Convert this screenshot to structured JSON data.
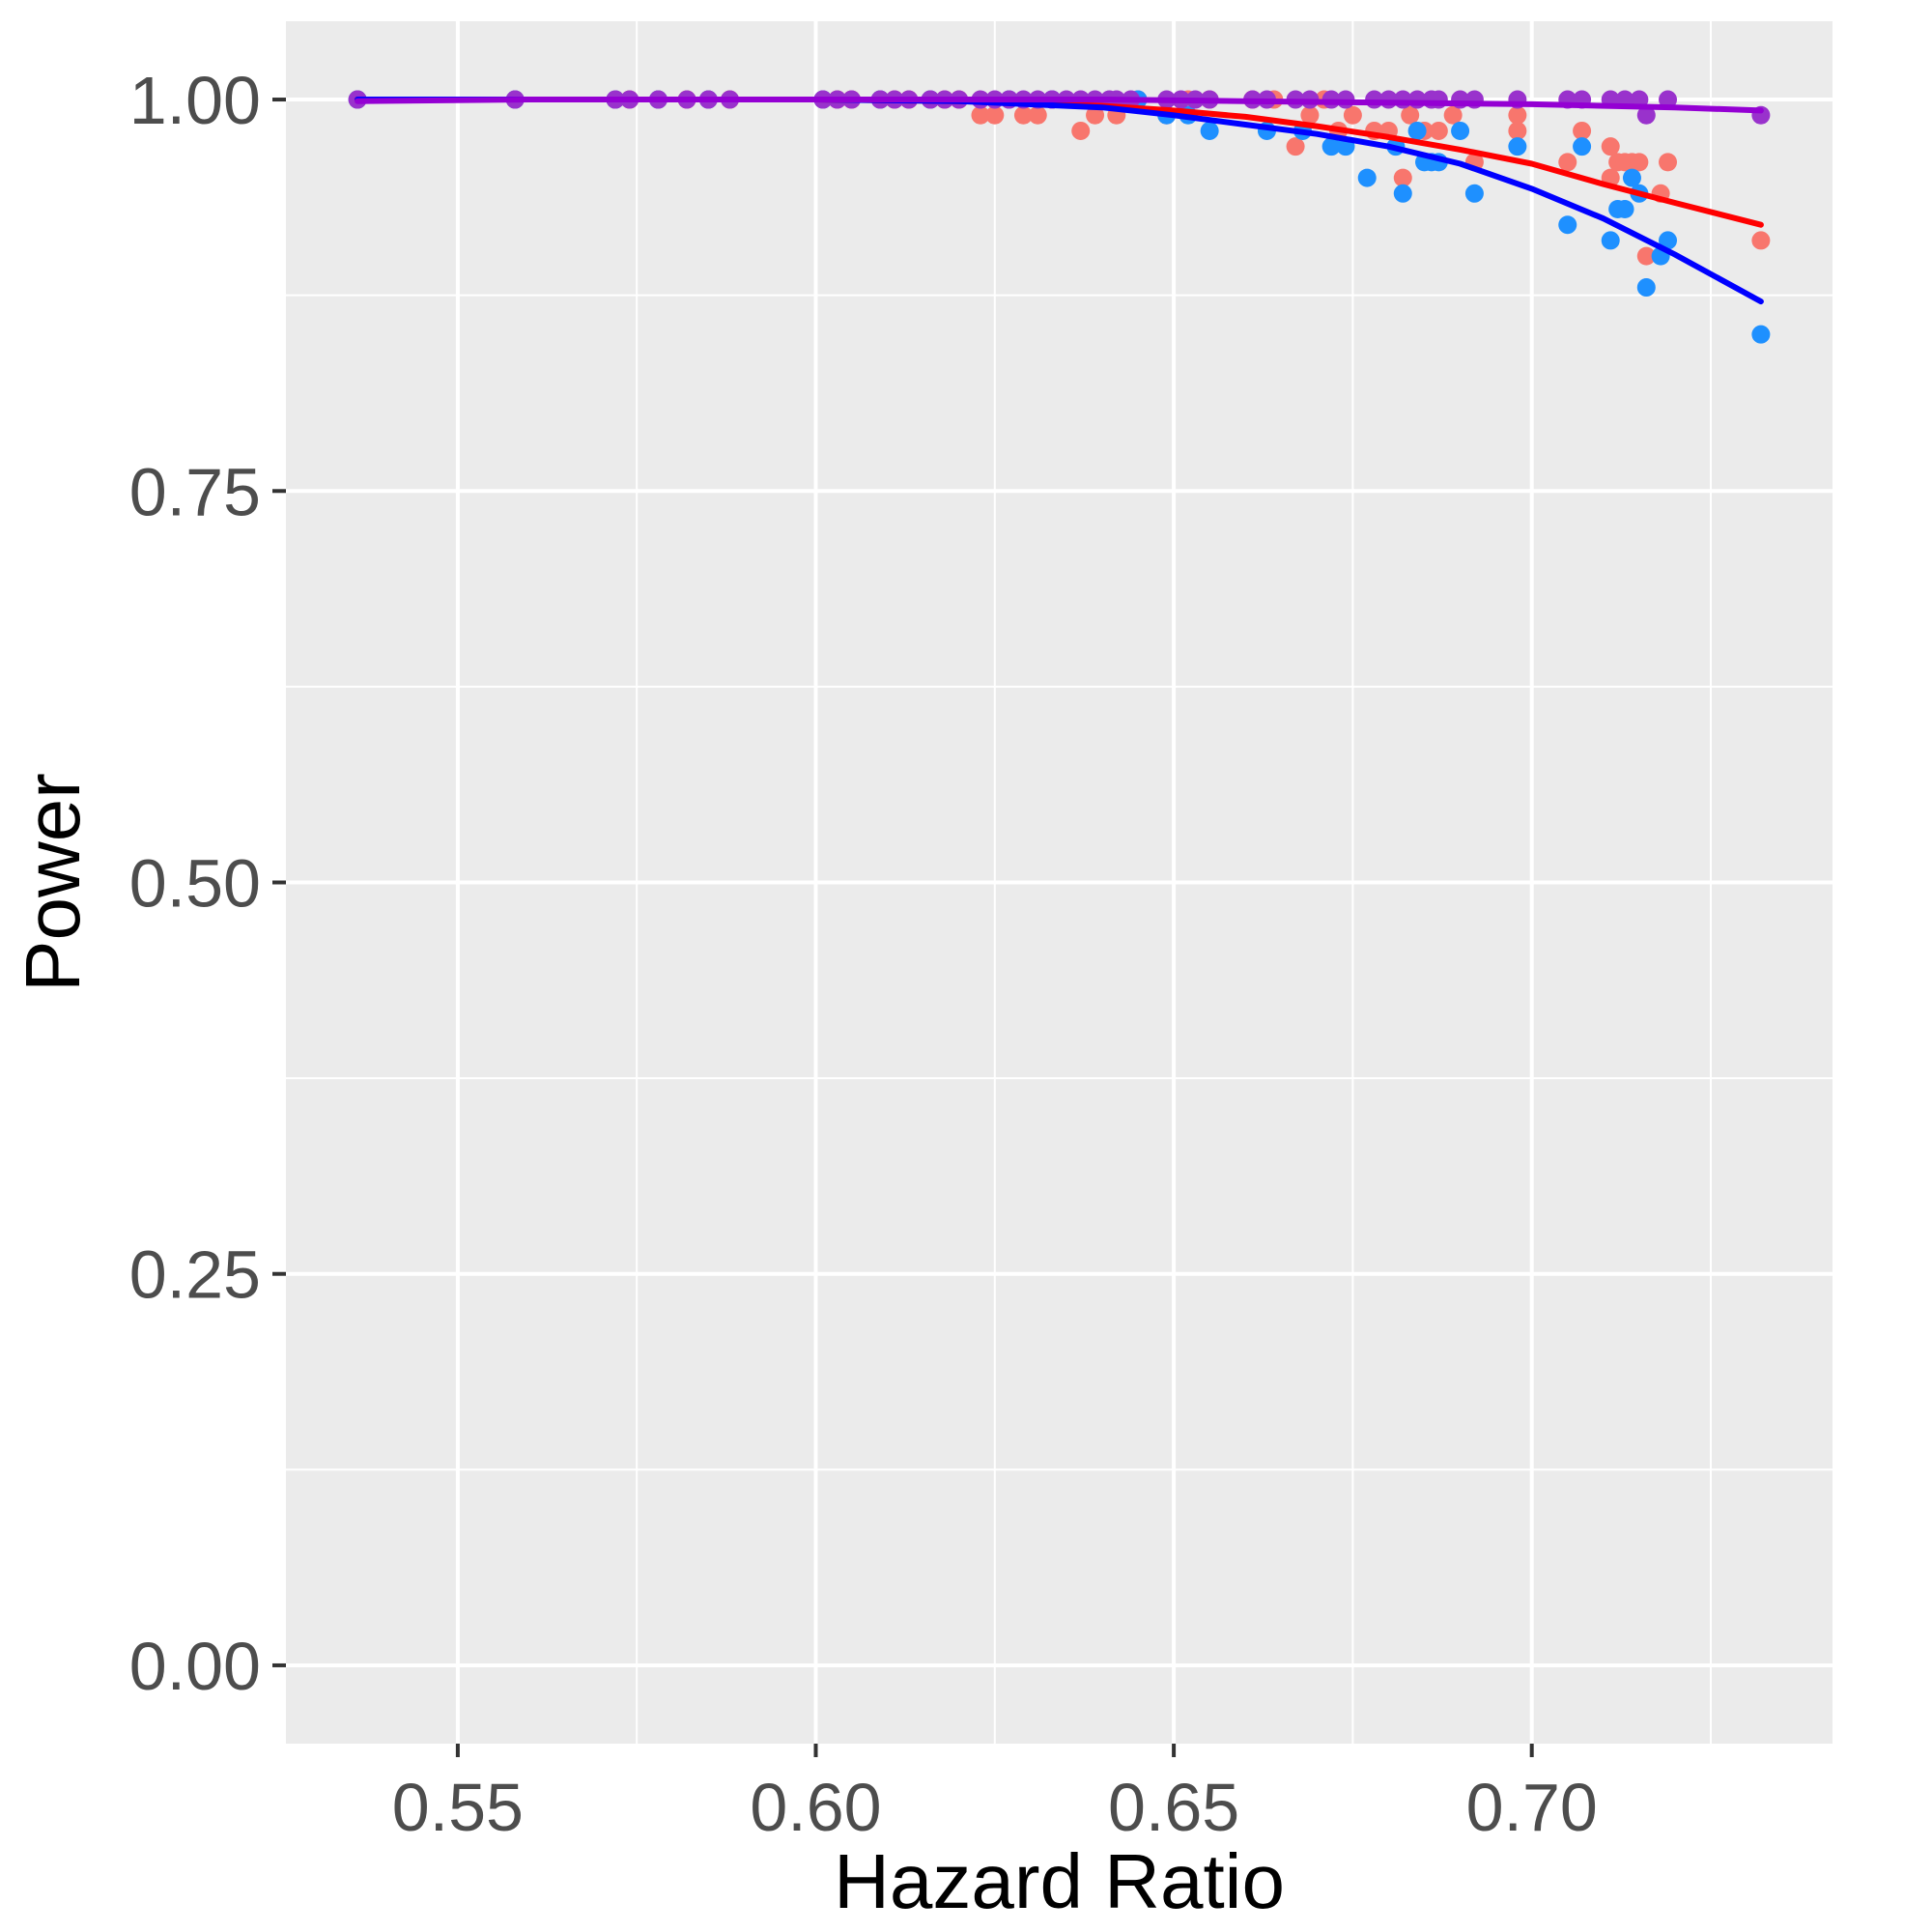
{
  "chart_data": {
    "type": "scatter",
    "title": "",
    "xlabel": "Hazard Ratio",
    "ylabel": "Power",
    "xlim": [
      0.526,
      0.742
    ],
    "ylim": [
      -0.05,
      1.05
    ],
    "x_ticks": [
      0.55,
      0.6,
      0.65,
      0.7
    ],
    "x_tick_labels": [
      "0.55",
      "0.60",
      "0.65",
      "0.70"
    ],
    "y_ticks": [
      0,
      0.25,
      0.5,
      0.75,
      1
    ],
    "y_tick_labels": [
      "0.00",
      "0.25",
      "0.50",
      "0.75",
      "1.00"
    ],
    "grid": true,
    "legend": "none",
    "colors": {
      "panel": "#ebebeb",
      "grid": "#ffffff",
      "axis_tick": "#333333"
    },
    "series": [
      {
        "color": "#f8766d",
        "line_color": "#ff0000",
        "points": [
          [
            0.536,
            1.0
          ],
          [
            0.558,
            1.0
          ],
          [
            0.572,
            1.0
          ],
          [
            0.574,
            1.0
          ],
          [
            0.578,
            1.0
          ],
          [
            0.582,
            1.0
          ],
          [
            0.585,
            1.0
          ],
          [
            0.588,
            1.0
          ],
          [
            0.601,
            1.0
          ],
          [
            0.603,
            1.0
          ],
          [
            0.605,
            1.0
          ],
          [
            0.609,
            1.0
          ],
          [
            0.611,
            1.0
          ],
          [
            0.613,
            1.0
          ],
          [
            0.616,
            1.0
          ],
          [
            0.618,
            1.0
          ],
          [
            0.62,
            1.0
          ],
          [
            0.623,
            0.99
          ],
          [
            0.625,
            0.99
          ],
          [
            0.627,
            1.0
          ],
          [
            0.629,
            0.99
          ],
          [
            0.631,
            0.99
          ],
          [
            0.633,
            1.0
          ],
          [
            0.637,
            0.98
          ],
          [
            0.639,
            0.99
          ],
          [
            0.642,
            0.99
          ],
          [
            0.645,
            1.0
          ],
          [
            0.649,
            0.99
          ],
          [
            0.652,
            1.0
          ],
          [
            0.655,
            1.0
          ],
          [
            0.661,
            1.0
          ],
          [
            0.664,
            1.0
          ],
          [
            0.667,
            0.97
          ],
          [
            0.669,
            0.99
          ],
          [
            0.671,
            1.0
          ],
          [
            0.673,
            0.98
          ],
          [
            0.675,
            0.99
          ],
          [
            0.678,
            0.98
          ],
          [
            0.68,
            0.98
          ],
          [
            0.682,
            0.95
          ],
          [
            0.683,
            0.99
          ],
          [
            0.685,
            0.98
          ],
          [
            0.687,
            0.98
          ],
          [
            0.689,
            0.99
          ],
          [
            0.692,
            0.96
          ],
          [
            0.698,
            0.98
          ],
          [
            0.698,
            0.99
          ],
          [
            0.705,
            0.96
          ],
          [
            0.707,
            0.98
          ],
          [
            0.711,
            0.97
          ],
          [
            0.711,
            0.95
          ],
          [
            0.712,
            0.96
          ],
          [
            0.713,
            0.96
          ],
          [
            0.714,
            0.96
          ],
          [
            0.715,
            0.96
          ],
          [
            0.716,
            0.9
          ],
          [
            0.718,
            0.94
          ],
          [
            0.719,
            0.96
          ],
          [
            0.732,
            0.91
          ]
        ],
        "fit": [
          [
            0.536,
            1.0
          ],
          [
            0.56,
            1.0
          ],
          [
            0.58,
            1.0
          ],
          [
            0.6,
            1.0
          ],
          [
            0.62,
            0.999
          ],
          [
            0.64,
            0.996
          ],
          [
            0.65,
            0.993
          ],
          [
            0.66,
            0.989
          ],
          [
            0.67,
            0.983
          ],
          [
            0.68,
            0.976
          ],
          [
            0.69,
            0.968
          ],
          [
            0.7,
            0.959
          ],
          [
            0.71,
            0.946
          ],
          [
            0.72,
            0.934
          ],
          [
            0.732,
            0.92
          ]
        ]
      },
      {
        "color": "#1e90ff",
        "line_color": "#0000ff",
        "points": [
          [
            0.536,
            1.0
          ],
          [
            0.558,
            1.0
          ],
          [
            0.572,
            1.0
          ],
          [
            0.578,
            1.0
          ],
          [
            0.585,
            1.0
          ],
          [
            0.601,
            1.0
          ],
          [
            0.609,
            1.0
          ],
          [
            0.616,
            1.0
          ],
          [
            0.627,
            1.0
          ],
          [
            0.633,
            1.0
          ],
          [
            0.645,
            1.0
          ],
          [
            0.649,
            0.99
          ],
          [
            0.652,
            0.99
          ],
          [
            0.655,
            0.98
          ],
          [
            0.663,
            0.98
          ],
          [
            0.668,
            0.98
          ],
          [
            0.672,
            0.97
          ],
          [
            0.674,
            0.97
          ],
          [
            0.677,
            0.95
          ],
          [
            0.681,
            0.97
          ],
          [
            0.682,
            0.94
          ],
          [
            0.684,
            0.98
          ],
          [
            0.685,
            0.96
          ],
          [
            0.686,
            0.96
          ],
          [
            0.687,
            0.96
          ],
          [
            0.69,
            0.98
          ],
          [
            0.692,
            0.94
          ],
          [
            0.698,
            0.97
          ],
          [
            0.705,
            0.92
          ],
          [
            0.707,
            0.97
          ],
          [
            0.711,
            0.91
          ],
          [
            0.712,
            0.93
          ],
          [
            0.713,
            0.93
          ],
          [
            0.714,
            0.95
          ],
          [
            0.715,
            0.94
          ],
          [
            0.716,
            0.88
          ],
          [
            0.718,
            0.9
          ],
          [
            0.719,
            0.91
          ],
          [
            0.732,
            0.85
          ]
        ],
        "fit": [
          [
            0.536,
            1.0
          ],
          [
            0.56,
            1.0
          ],
          [
            0.58,
            1.0
          ],
          [
            0.6,
            1.0
          ],
          [
            0.62,
            0.999
          ],
          [
            0.64,
            0.995
          ],
          [
            0.65,
            0.99
          ],
          [
            0.66,
            0.984
          ],
          [
            0.67,
            0.978
          ],
          [
            0.68,
            0.97
          ],
          [
            0.69,
            0.959
          ],
          [
            0.7,
            0.943
          ],
          [
            0.71,
            0.924
          ],
          [
            0.72,
            0.901
          ],
          [
            0.732,
            0.871
          ]
        ]
      },
      {
        "color": "#9932cc",
        "line_color": "#9400d3",
        "points": [
          [
            0.536,
            1.0
          ],
          [
            0.558,
            1.0
          ],
          [
            0.572,
            1.0
          ],
          [
            0.574,
            1.0
          ],
          [
            0.578,
            1.0
          ],
          [
            0.582,
            1.0
          ],
          [
            0.585,
            1.0
          ],
          [
            0.588,
            1.0
          ],
          [
            0.601,
            1.0
          ],
          [
            0.603,
            1.0
          ],
          [
            0.605,
            1.0
          ],
          [
            0.609,
            1.0
          ],
          [
            0.611,
            1.0
          ],
          [
            0.613,
            1.0
          ],
          [
            0.616,
            1.0
          ],
          [
            0.618,
            1.0
          ],
          [
            0.62,
            1.0
          ],
          [
            0.623,
            1.0
          ],
          [
            0.625,
            1.0
          ],
          [
            0.627,
            1.0
          ],
          [
            0.629,
            1.0
          ],
          [
            0.631,
            1.0
          ],
          [
            0.633,
            1.0
          ],
          [
            0.635,
            1.0
          ],
          [
            0.637,
            1.0
          ],
          [
            0.639,
            1.0
          ],
          [
            0.641,
            1.0
          ],
          [
            0.642,
            1.0
          ],
          [
            0.644,
            1.0
          ],
          [
            0.649,
            1.0
          ],
          [
            0.651,
            1.0
          ],
          [
            0.653,
            1.0
          ],
          [
            0.655,
            1.0
          ],
          [
            0.661,
            1.0
          ],
          [
            0.663,
            1.0
          ],
          [
            0.667,
            1.0
          ],
          [
            0.669,
            1.0
          ],
          [
            0.672,
            1.0
          ],
          [
            0.674,
            1.0
          ],
          [
            0.678,
            1.0
          ],
          [
            0.68,
            1.0
          ],
          [
            0.682,
            1.0
          ],
          [
            0.684,
            1.0
          ],
          [
            0.686,
            1.0
          ],
          [
            0.687,
            1.0
          ],
          [
            0.69,
            1.0
          ],
          [
            0.692,
            1.0
          ],
          [
            0.698,
            1.0
          ],
          [
            0.705,
            1.0
          ],
          [
            0.707,
            1.0
          ],
          [
            0.711,
            1.0
          ],
          [
            0.713,
            1.0
          ],
          [
            0.715,
            1.0
          ],
          [
            0.716,
            0.99
          ],
          [
            0.719,
            1.0
          ],
          [
            0.732,
            0.99
          ]
        ],
        "fit": [
          [
            0.536,
            0.999
          ],
          [
            0.56,
            1.0
          ],
          [
            0.6,
            1.0
          ],
          [
            0.64,
            1.0
          ],
          [
            0.66,
            0.999
          ],
          [
            0.68,
            0.998
          ],
          [
            0.7,
            0.997
          ],
          [
            0.72,
            0.995
          ],
          [
            0.732,
            0.993
          ]
        ]
      }
    ]
  }
}
